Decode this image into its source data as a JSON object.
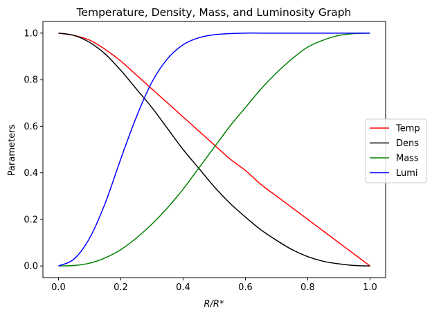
{
  "chart_data": {
    "type": "line",
    "title": "Temperature, Density, Mass, and Luminosity Graph",
    "xlabel": "R/R*",
    "ylabel": "Parameters",
    "xlim": [
      -0.05,
      1.05
    ],
    "ylim": [
      -0.05,
      1.05
    ],
    "xticks": [
      0.0,
      0.2,
      0.4,
      0.6,
      0.8,
      1.0
    ],
    "xtick_labels": [
      "0.0",
      "0.2",
      "0.4",
      "0.6",
      "0.8",
      "1.0"
    ],
    "yticks": [
      0.0,
      0.2,
      0.4,
      0.6,
      0.8,
      1.0
    ],
    "ytick_labels": [
      "0.0",
      "0.2",
      "0.4",
      "0.6",
      "0.8",
      "1.0"
    ],
    "grid": false,
    "legend_position": "center-right",
    "x": [
      0.0,
      0.05,
      0.1,
      0.15,
      0.2,
      0.25,
      0.3,
      0.35,
      0.4,
      0.45,
      0.5,
      0.55,
      0.6,
      0.65,
      0.7,
      0.75,
      0.8,
      0.85,
      0.9,
      0.95,
      1.0
    ],
    "series": [
      {
        "name": "Temp",
        "color": "#ff0000",
        "values": [
          1.0,
          0.99,
          0.97,
          0.93,
          0.88,
          0.82,
          0.76,
          0.7,
          0.64,
          0.58,
          0.52,
          0.46,
          0.41,
          0.35,
          0.3,
          0.25,
          0.2,
          0.15,
          0.1,
          0.05,
          0.0
        ]
      },
      {
        "name": "Dens",
        "color": "#000000",
        "values": [
          1.0,
          0.99,
          0.96,
          0.91,
          0.84,
          0.76,
          0.68,
          0.59,
          0.5,
          0.42,
          0.34,
          0.27,
          0.21,
          0.155,
          0.11,
          0.07,
          0.04,
          0.02,
          0.009,
          0.002,
          0.0
        ]
      },
      {
        "name": "Mass",
        "color": "#008000",
        "values": [
          0.0,
          0.002,
          0.012,
          0.035,
          0.07,
          0.12,
          0.18,
          0.25,
          0.33,
          0.42,
          0.51,
          0.6,
          0.68,
          0.76,
          0.83,
          0.89,
          0.94,
          0.97,
          0.99,
          0.998,
          1.0
        ]
      },
      {
        "name": "Lumi",
        "color": "#0000ff",
        "values": [
          0.0,
          0.03,
          0.12,
          0.27,
          0.46,
          0.64,
          0.79,
          0.89,
          0.95,
          0.98,
          0.993,
          0.998,
          1.0,
          1.0,
          1.0,
          1.0,
          1.0,
          1.0,
          1.0,
          1.0,
          1.0
        ]
      }
    ]
  }
}
